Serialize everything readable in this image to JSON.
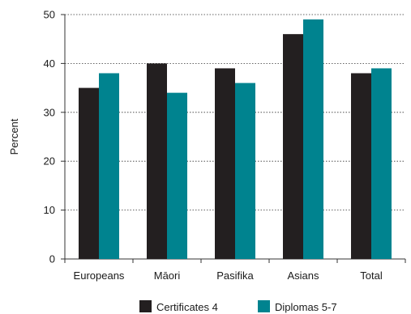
{
  "chart_data": {
    "type": "bar",
    "title": "",
    "xlabel": "",
    "ylabel": "Percent",
    "ylim": [
      0,
      50
    ],
    "yticks": [
      0,
      10,
      20,
      30,
      40,
      50
    ],
    "grid": "horizontal dotted",
    "legend_position": "bottom",
    "categories": [
      "Europeans",
      "Māori",
      "Pasifika",
      "Asians",
      "Total"
    ],
    "series": [
      {
        "name": "Certificates 4",
        "color": "#231f20",
        "values": [
          35,
          40,
          39,
          46,
          38
        ]
      },
      {
        "name": "Diplomas 5-7",
        "color": "#00838f",
        "values": [
          38,
          34,
          36,
          49,
          39
        ]
      }
    ]
  }
}
